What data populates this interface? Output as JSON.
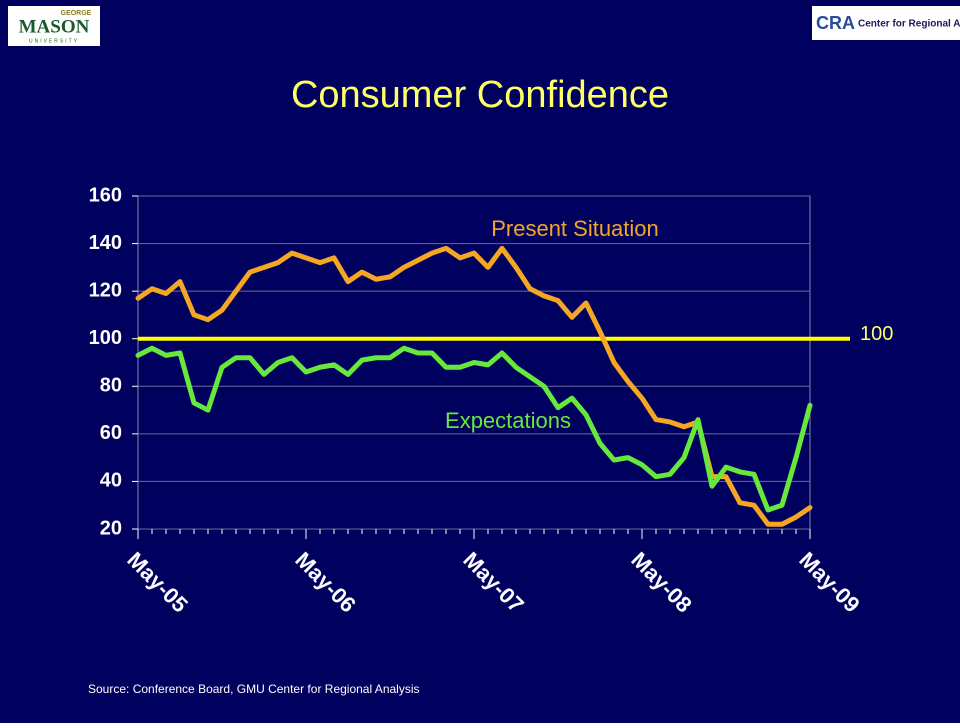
{
  "header": {
    "left_logo_top": "GEORGE",
    "left_logo": "MASON",
    "left_logo_bottom": "UNIVERSITY",
    "right_logo_mark": "CRA",
    "right_logo": "Center for Regional Analys"
  },
  "chart_data": {
    "type": "line",
    "title": "Consumer Confidence",
    "categories": [
      "May-05",
      null,
      null,
      null,
      null,
      null,
      null,
      null,
      null,
      null,
      null,
      null,
      "May-06",
      null,
      null,
      null,
      null,
      null,
      null,
      null,
      null,
      null,
      null,
      null,
      "May-07",
      null,
      null,
      null,
      null,
      null,
      null,
      null,
      null,
      null,
      null,
      null,
      "May-08",
      null,
      null,
      null,
      null,
      null,
      null,
      null,
      null,
      null,
      null,
      null,
      "May-09"
    ],
    "series": [
      {
        "name": "Present Situation",
        "color": "#f5a623",
        "values": [
          117,
          121,
          119,
          124,
          110,
          108,
          112,
          120,
          128,
          130,
          132,
          136,
          134,
          132,
          134,
          124,
          128,
          125,
          126,
          130,
          133,
          136,
          138,
          134,
          136,
          130,
          138,
          130,
          121,
          118,
          116,
          109,
          115,
          103,
          90,
          82,
          75,
          66,
          65,
          63,
          65,
          42,
          42,
          31,
          30,
          22,
          22,
          25,
          29
        ]
      },
      {
        "name": "Expectations",
        "color": "#66e83c",
        "values": [
          93,
          96,
          93,
          94,
          73,
          70,
          88,
          92,
          92,
          85,
          90,
          92,
          86,
          88,
          89,
          85,
          91,
          92,
          92,
          96,
          94,
          94,
          88,
          88,
          90,
          89,
          94,
          88,
          84,
          80,
          71,
          75,
          68,
          56,
          49,
          50,
          47,
          42,
          43,
          50,
          66,
          38,
          46,
          44,
          43,
          28,
          30,
          50,
          72
        ]
      }
    ],
    "hline": 100,
    "hline_color": "#ffff00",
    "ylim": [
      20,
      160
    ],
    "yticks": [
      20,
      40,
      60,
      80,
      100,
      120,
      140,
      160
    ],
    "grid": true
  },
  "source": "Source: Conference Board, GMU Center for Regional Analysis"
}
